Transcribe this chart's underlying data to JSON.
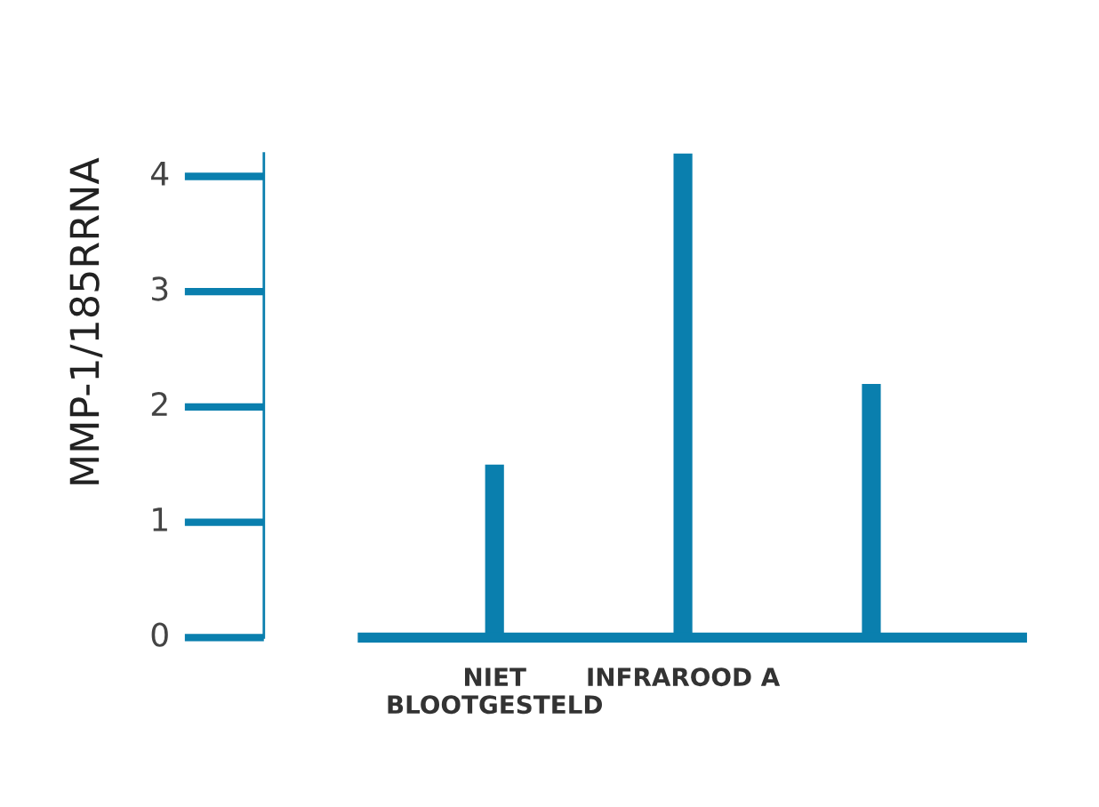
{
  "chart_data": {
    "type": "bar",
    "ylabel": "MMP-1/185RRNA",
    "categories": [
      "NIET\nBLOOTGESTELD",
      "INFRAROOD A",
      null
    ],
    "values": [
      1.5,
      4.2,
      2.2
    ],
    "color": "#0a7fae",
    "ylim": [
      0,
      4.2
    ],
    "yticks": [
      0,
      1,
      2,
      3,
      4
    ],
    "grid": false
  }
}
